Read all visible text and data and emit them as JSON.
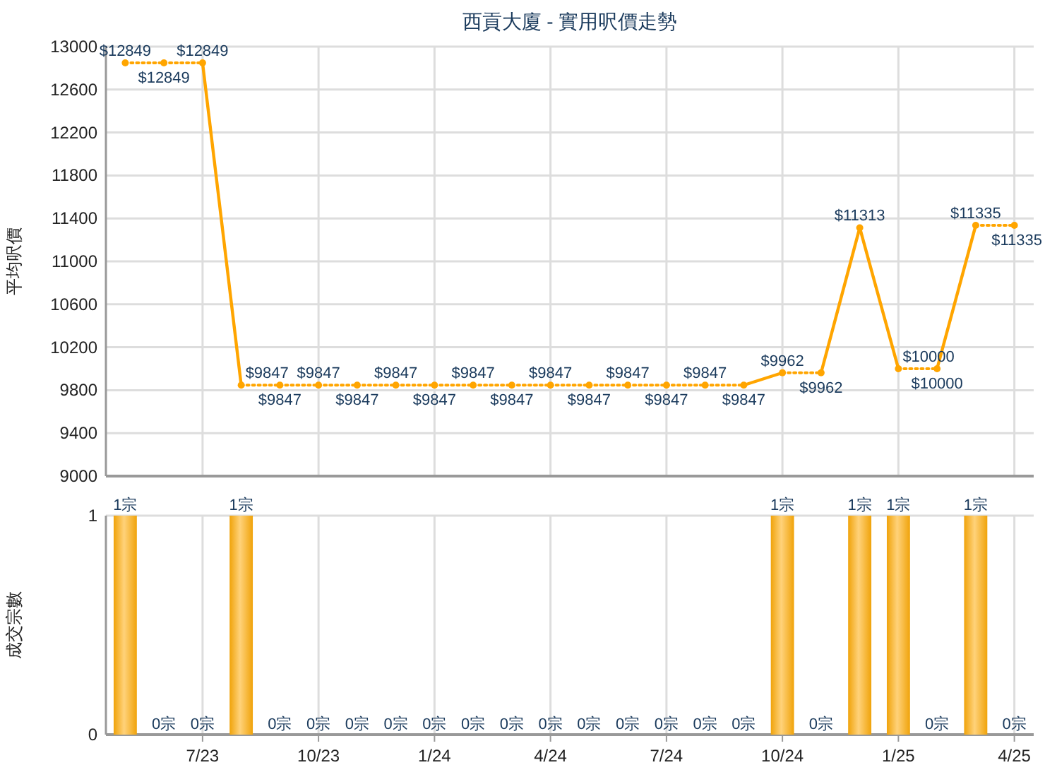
{
  "chart_data": [
    {
      "type": "line",
      "title": "西貢大廈 - 實用呎價走勢",
      "ylabel": "平均呎價",
      "categories": [
        null,
        null,
        null,
        null,
        null,
        null,
        null,
        null,
        null,
        null,
        null,
        null,
        null,
        null,
        null,
        null,
        null,
        null,
        null,
        null,
        null,
        null,
        null,
        null
      ],
      "series": [
        {
          "color": "#ffa500",
          "values": [
            12849,
            12849,
            12849,
            9847,
            9847,
            9847,
            9847,
            9847,
            9847,
            9847,
            9847,
            9847,
            9847,
            9847,
            9847,
            9847,
            9847,
            9962,
            9962,
            11313,
            10000,
            10000,
            11335,
            11335
          ],
          "value_labels": [
            "$12849",
            "$12849",
            "$12849",
            "$9847",
            "$9847",
            "$9847",
            "$9847",
            "$9847",
            "$9847",
            "$9847",
            "$9847",
            "$9847",
            "$9847",
            "$9847",
            "$9847",
            "$9847",
            "$9847",
            "$9962",
            "$9962",
            "$11313",
            "$10000",
            "$10000",
            "$11335",
            "$11335"
          ]
        }
      ],
      "ylim": [
        9000,
        13000
      ],
      "yticks": [
        9000,
        9400,
        9800,
        10200,
        10600,
        11000,
        11400,
        11800,
        12200,
        12600,
        13000
      ],
      "grid": true,
      "marker": "circle",
      "tick_labels": "y"
    },
    {
      "type": "bar",
      "ylabel": "成交宗數",
      "categories": [
        null,
        null,
        "7/23",
        null,
        null,
        "10/23",
        null,
        null,
        "1/24",
        null,
        null,
        "4/24",
        null,
        null,
        "7/24",
        null,
        null,
        "10/24",
        null,
        null,
        "1/25",
        null,
        null,
        "4/25"
      ],
      "series": [
        {
          "color": "#f0a30a",
          "values": [
            1,
            0,
            0,
            1,
            0,
            0,
            0,
            0,
            0,
            0,
            0,
            0,
            0,
            0,
            0,
            0,
            0,
            1,
            0,
            1,
            1,
            0,
            1,
            0
          ],
          "value_labels": [
            "1宗",
            "0宗",
            "0宗",
            "1宗",
            "0宗",
            "0宗",
            "0宗",
            "0宗",
            "0宗",
            "0宗",
            "0宗",
            "0宗",
            "0宗",
            "0宗",
            "0宗",
            "0宗",
            "0宗",
            "1宗",
            "0宗",
            "1宗",
            "1宗",
            "0宗",
            "1宗",
            "0宗"
          ]
        }
      ],
      "ylim": [
        0,
        1
      ],
      "yticks": [
        0,
        1
      ],
      "grid": true
    }
  ]
}
